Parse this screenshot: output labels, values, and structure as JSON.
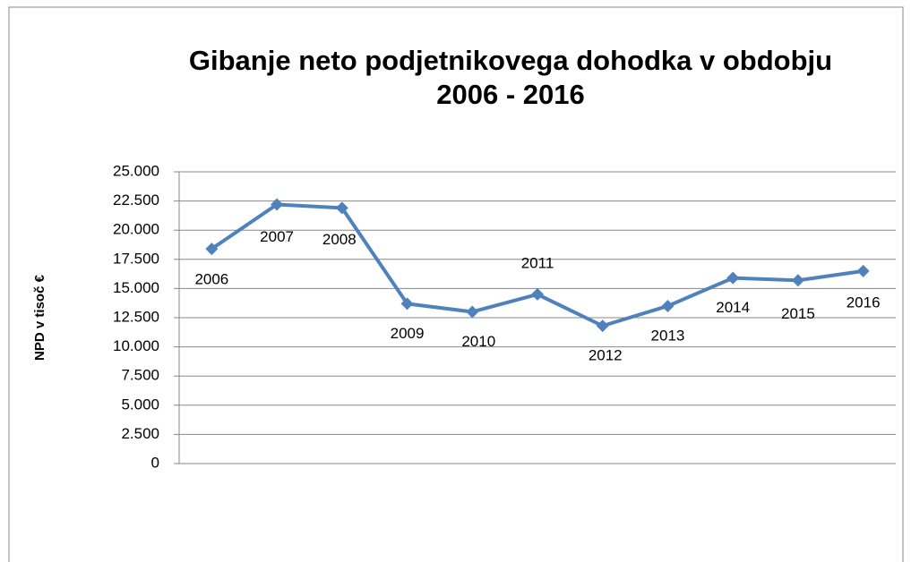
{
  "chart_data": {
    "type": "line",
    "title": [
      "Gibanje neto podjetnikovega dohodka v obdobju",
      "2006 - 2016"
    ],
    "y_label": "NPD v tisoč €",
    "categories": [
      "2006",
      "2007",
      "2008",
      "2009",
      "2010",
      "2011",
      "2012",
      "2013",
      "2014",
      "2015",
      "2016"
    ],
    "series": [
      {
        "name": "NPD",
        "color": "#4f81bd",
        "values": [
          18400,
          22200,
          21900,
          13700,
          13000,
          14500,
          11800,
          13500,
          15900,
          15700,
          16500
        ]
      }
    ],
    "ylim": [
      0,
      25000
    ],
    "yticks": [
      0,
      {
        "value": 2500,
        "label": "2.500"
      },
      {
        "value": 5000,
        "label": "5.000"
      },
      {
        "value": 7500,
        "label": "7.500"
      },
      {
        "value": 10000,
        "label": "10.000"
      },
      {
        "value": 12500,
        "label": "12.500"
      },
      {
        "value": 15000,
        "label": "15.000"
      },
      {
        "value": 17500,
        "label": "17.500"
      },
      {
        "value": 20000,
        "label": "20.000"
      },
      {
        "value": 22500,
        "label": "22.500"
      },
      {
        "value": 25000,
        "label": "25.000"
      }
    ],
    "grid": true
  }
}
